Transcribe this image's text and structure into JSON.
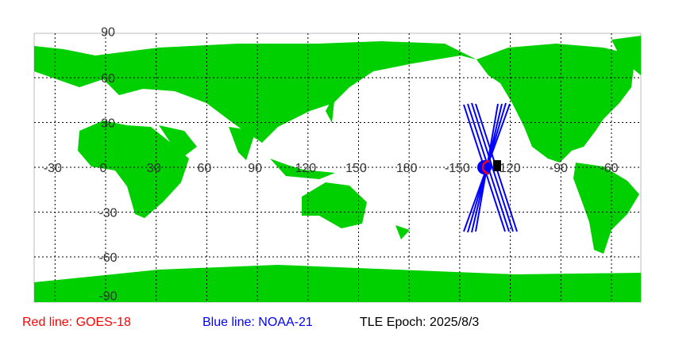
{
  "map": {
    "projection": "equirectangular",
    "land_color": "#00d000",
    "lat_labels": [
      "90",
      "60",
      "30",
      "0",
      "-30",
      "-60",
      "-90"
    ],
    "lon_labels": [
      "-30",
      "0",
      "30",
      "60",
      "90",
      "120",
      "150",
      "180",
      "-150",
      "-120",
      "-90",
      "-60"
    ]
  },
  "satellites": [
    {
      "name": "GOES-18",
      "track_color": "#ff0000"
    },
    {
      "name": "NOAA-21",
      "track_color": "#0000ff"
    }
  ],
  "legend": {
    "red": "Red line: GOES-18",
    "blue": "Blue line: NOAA-21",
    "epoch": "TLE Epoch: 2025/8/3"
  }
}
